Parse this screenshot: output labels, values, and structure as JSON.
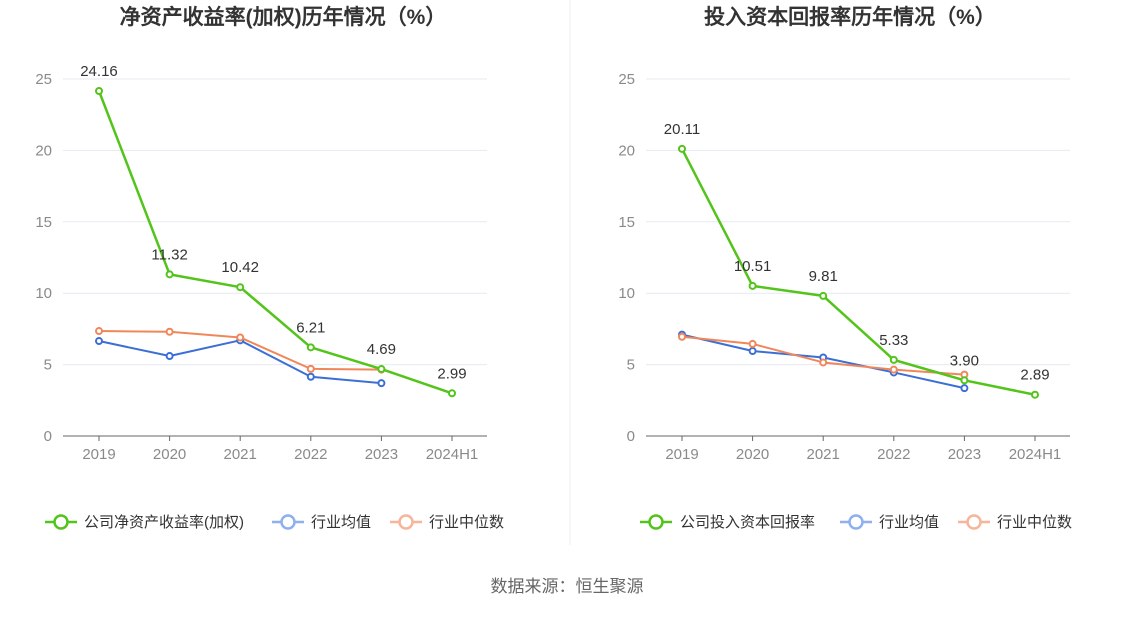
{
  "source_label": "数据来源：恒生聚源",
  "colors": {
    "company": "#52c41a",
    "industry_avg": "#3b6fd6",
    "industry_median": "#f0875a",
    "legend_avg": "#8fb0ee",
    "legend_median": "#f7b59a"
  },
  "chart_data": [
    {
      "type": "line",
      "title": "净资产收益率(加权)历年情况（%）",
      "categories": [
        "2019",
        "2020",
        "2021",
        "2022",
        "2023",
        "2024H1"
      ],
      "ylim": [
        0,
        25
      ],
      "yticks": [
        0,
        5,
        10,
        15,
        20,
        25
      ],
      "grid": true,
      "legend_position": "bottom",
      "series": [
        {
          "name": "公司净资产收益率(加权)",
          "role": "company",
          "values": [
            24.16,
            11.32,
            10.42,
            6.21,
            4.69,
            2.99
          ],
          "labels": [
            "24.16",
            "11.32",
            "10.42",
            "6.21",
            "4.69",
            "2.99"
          ]
        },
        {
          "name": "行业均值",
          "role": "industry_avg",
          "values": [
            6.65,
            5.6,
            6.7,
            4.15,
            3.7,
            null
          ]
        },
        {
          "name": "行业中位数",
          "role": "industry_median",
          "values": [
            7.35,
            7.3,
            6.9,
            4.7,
            4.65,
            null
          ]
        }
      ]
    },
    {
      "type": "line",
      "title": "投入资本回报率历年情况（%）",
      "categories": [
        "2019",
        "2020",
        "2021",
        "2022",
        "2023",
        "2024H1"
      ],
      "ylim": [
        0,
        25
      ],
      "yticks": [
        0,
        5,
        10,
        15,
        20,
        25
      ],
      "grid": true,
      "legend_position": "bottom",
      "series": [
        {
          "name": "公司投入资本回报率",
          "role": "company",
          "values": [
            20.11,
            10.51,
            9.81,
            5.33,
            3.9,
            2.89
          ],
          "labels": [
            "20.11",
            "10.51",
            "9.81",
            "5.33",
            "3.90",
            "2.89"
          ]
        },
        {
          "name": "行业均值",
          "role": "industry_avg",
          "values": [
            7.1,
            5.95,
            5.5,
            4.45,
            3.35,
            null
          ]
        },
        {
          "name": "行业中位数",
          "role": "industry_median",
          "values": [
            6.95,
            6.45,
            5.15,
            4.65,
            4.3,
            null
          ]
        }
      ]
    }
  ]
}
